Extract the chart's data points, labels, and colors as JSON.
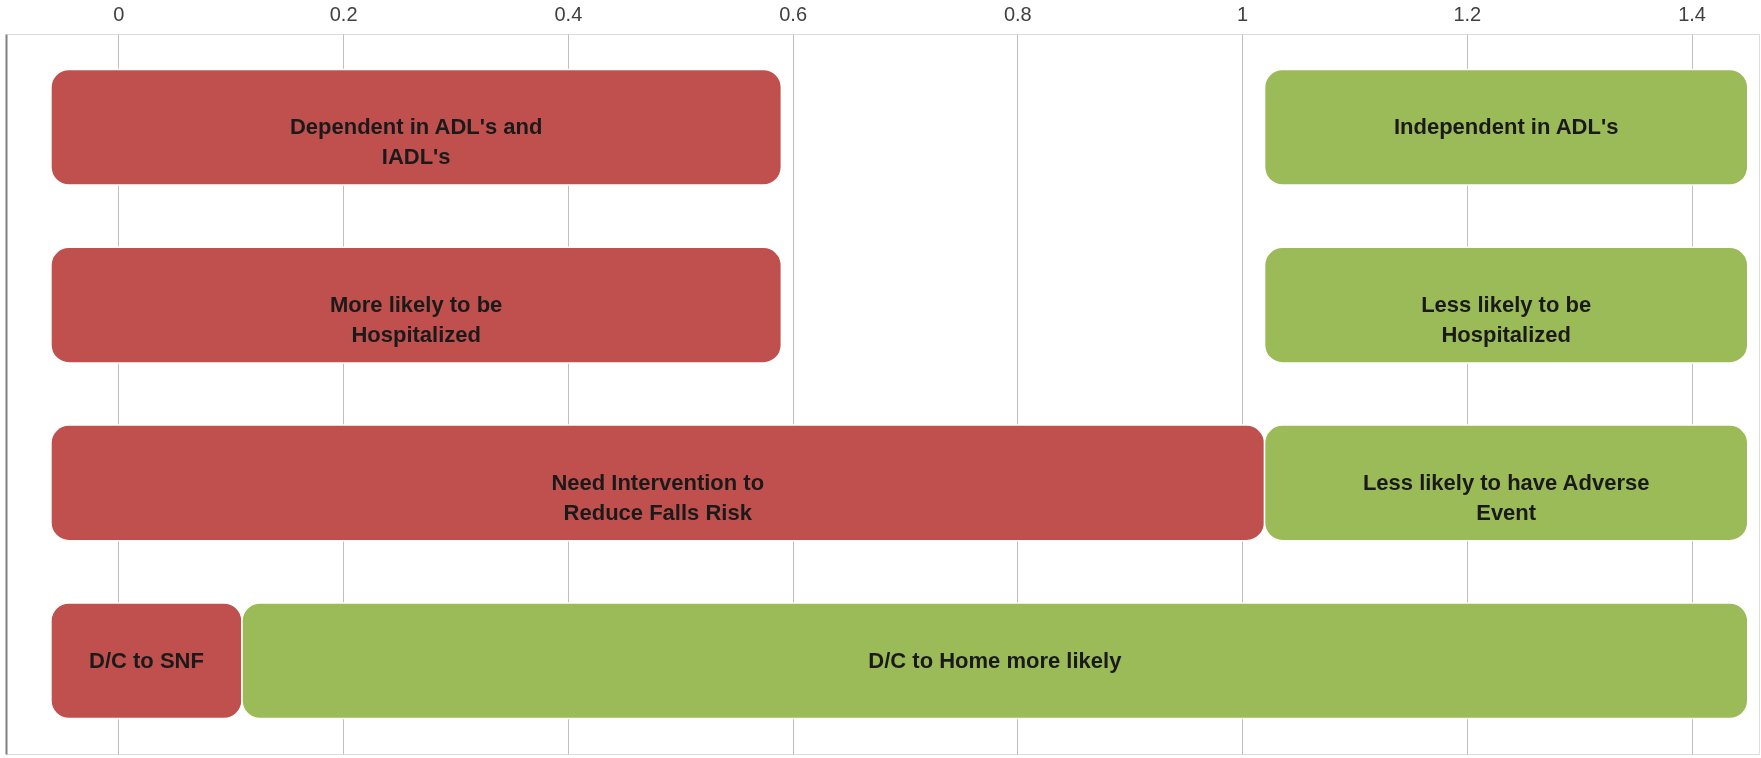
{
  "chart_data": {
    "type": "bar",
    "orientation": "horizontal",
    "categories": [
      null,
      null,
      null,
      null
    ],
    "series": [
      {
        "color": "#c0504d",
        "base": [
          -0.06,
          -0.06,
          -0.06,
          -0.06
        ],
        "values": [
          0.65,
          0.65,
          1.08,
          0.17
        ],
        "value_labels": [
          "Dependent in ADL's and\nIADL's",
          "More likely to be\nHospitalized",
          "Need Intervention to\nReduce Falls Risk",
          "D/C to SNF"
        ]
      },
      {
        "color": "#9bbb59",
        "base": [
          1.02,
          1.02,
          1.02,
          0.11
        ],
        "values": [
          0.43,
          0.43,
          0.43,
          1.34
        ],
        "value_labels": [
          "Independent in ADL's",
          "Less likely to be\nHospitalized",
          "Less likely to have Adverse\nEvent",
          "D/C to Home more likely"
        ]
      }
    ],
    "xlim": [
      -0.1,
      1.46
    ],
    "xticks": [
      0,
      0.2,
      0.4,
      0.6,
      0.8,
      1,
      1.2,
      1.4
    ],
    "grid": "x",
    "tick_labels": "x"
  }
}
